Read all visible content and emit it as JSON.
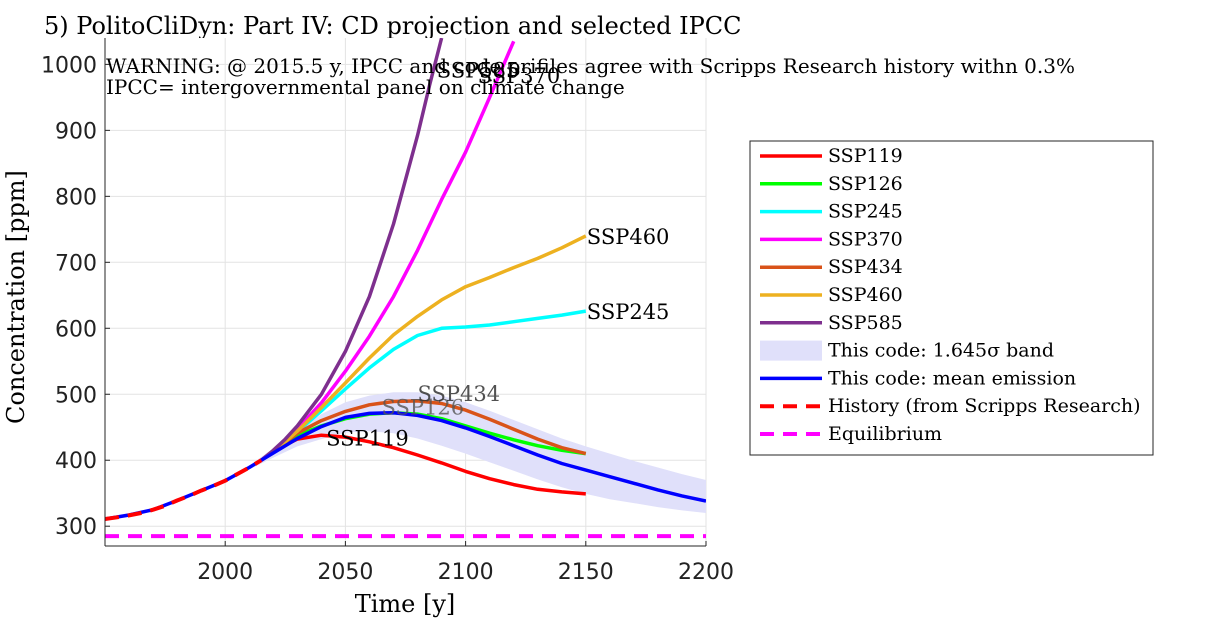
{
  "chart_data": {
    "type": "line",
    "title": "5) PolitoCliDyn: Part IV: CD projection and selected IPCC",
    "annotations": [
      "WARNING: @ 2015.5 y, IPCC and code prifiles agree with Scripps Research history withn 0.3%",
      "IPCC= intergovernmental panel on climate change"
    ],
    "xlabel": "Time [y]",
    "ylabel": "Concentration [ppm]",
    "xlim": [
      1950,
      2200
    ],
    "ylim": [
      270,
      1040
    ],
    "xticks": [
      2000,
      2050,
      2100,
      2150,
      2200
    ],
    "yticks": [
      300,
      400,
      500,
      600,
      700,
      800,
      900,
      1000
    ],
    "grid": true,
    "legend_position": "outside-right",
    "series": [
      {
        "name": "SSP119",
        "label": "SSP119",
        "color": "#ff0000",
        "style": "solid",
        "x": [
          2015,
          2020,
          2025,
          2030,
          2040,
          2050,
          2060,
          2070,
          2080,
          2090,
          2100,
          2110,
          2120,
          2130,
          2140,
          2150
        ],
        "y": [
          400,
          412,
          423,
          432,
          438,
          435,
          428,
          419,
          408,
          396,
          383,
          372,
          363,
          356,
          352,
          349
        ]
      },
      {
        "name": "SSP126",
        "label": "SSP126",
        "color": "#00ff00",
        "style": "solid",
        "x": [
          2015,
          2020,
          2025,
          2030,
          2040,
          2050,
          2060,
          2070,
          2080,
          2090,
          2100,
          2110,
          2120,
          2130,
          2140,
          2150
        ],
        "y": [
          400,
          412,
          425,
          437,
          452,
          463,
          470,
          472,
          470,
          463,
          452,
          441,
          431,
          422,
          415,
          410
        ]
      },
      {
        "name": "SSP245",
        "label": "SSP245",
        "color": "#00ffff",
        "style": "solid",
        "x": [
          2015,
          2020,
          2025,
          2030,
          2040,
          2050,
          2060,
          2070,
          2080,
          2090,
          2100,
          2110,
          2120,
          2130,
          2140,
          2150
        ],
        "y": [
          400,
          413,
          428,
          443,
          475,
          508,
          540,
          568,
          589,
          600,
          602,
          605,
          610,
          615,
          620,
          626
        ]
      },
      {
        "name": "SSP370",
        "label": "SSP370",
        "color": "#ff00ff",
        "style": "solid",
        "x": [
          2015,
          2020,
          2025,
          2030,
          2040,
          2050,
          2060,
          2070,
          2080,
          2090,
          2100,
          2110,
          2120
        ],
        "y": [
          400,
          414,
          430,
          447,
          487,
          535,
          588,
          648,
          718,
          795,
          867,
          950,
          1035
        ]
      },
      {
        "name": "SSP434",
        "label": "SSP434",
        "color": "#d95319",
        "style": "solid",
        "x": [
          2015,
          2020,
          2025,
          2030,
          2040,
          2050,
          2060,
          2070,
          2080,
          2090,
          2100,
          2110,
          2120,
          2130,
          2140,
          2150
        ],
        "y": [
          400,
          413,
          427,
          441,
          460,
          474,
          484,
          489,
          490,
          486,
          476,
          462,
          447,
          432,
          419,
          410
        ]
      },
      {
        "name": "SSP460",
        "label": "SSP460",
        "color": "#edb120",
        "style": "solid",
        "x": [
          2015,
          2020,
          2025,
          2030,
          2040,
          2050,
          2060,
          2070,
          2080,
          2090,
          2100,
          2110,
          2120,
          2130,
          2140,
          2150
        ],
        "y": [
          400,
          413,
          428,
          444,
          480,
          517,
          555,
          590,
          618,
          643,
          663,
          677,
          692,
          706,
          722,
          740
        ]
      },
      {
        "name": "SSP585",
        "label": "SSP585",
        "color": "#7e2f8e",
        "style": "solid",
        "x": [
          2015,
          2020,
          2025,
          2030,
          2040,
          2050,
          2060,
          2070,
          2080,
          2085,
          2090
        ],
        "y": [
          400,
          415,
          432,
          452,
          500,
          565,
          648,
          758,
          892,
          968,
          1040
        ]
      },
      {
        "name": "This code: mean emission",
        "color": "#0000ff",
        "style": "solid",
        "x": [
          1950,
          1960,
          1970,
          1980,
          1990,
          2000,
          2010,
          2020,
          2030,
          2040,
          2050,
          2060,
          2070,
          2080,
          2090,
          2100,
          2110,
          2120,
          2130,
          2140,
          2150,
          2160,
          2170,
          2180,
          2190,
          2200
        ],
        "y": [
          311,
          317,
          325,
          339,
          354,
          369,
          389,
          411,
          433,
          451,
          465,
          471,
          472,
          468,
          460,
          449,
          436,
          422,
          408,
          395,
          385,
          375,
          365,
          355,
          346,
          338
        ]
      },
      {
        "name": "History (from Scripps Research)",
        "color": "#ff0000",
        "style": "dashed",
        "x": [
          1950,
          1958,
          1965,
          1970,
          1975,
          1980,
          1985,
          1990,
          1995,
          2000,
          2005,
          2010,
          2015
        ],
        "y": [
          311,
          315,
          320,
          325,
          331,
          339,
          346,
          354,
          361,
          369,
          379,
          389,
          400
        ]
      },
      {
        "name": "Equilibrium",
        "color": "#ff00ff",
        "style": "dashed",
        "x": [
          1950,
          2200
        ],
        "y": [
          285,
          285
        ]
      }
    ],
    "band": {
      "name": "This code: 1.645σ band",
      "color": "#e0e0fa",
      "x": [
        2000,
        2010,
        2020,
        2030,
        2040,
        2050,
        2060,
        2070,
        2080,
        2090,
        2100,
        2110,
        2120,
        2130,
        2140,
        2150,
        2160,
        2170,
        2180,
        2190,
        2200
      ],
      "upper": [
        371,
        392,
        418,
        445,
        470,
        488,
        498,
        503,
        503,
        498,
        488,
        475,
        461,
        447,
        433,
        421,
        410,
        399,
        389,
        379,
        370
      ],
      "lower": [
        367,
        386,
        404,
        421,
        432,
        442,
        444,
        441,
        433,
        422,
        410,
        397,
        384,
        371,
        359,
        349,
        341,
        335,
        329,
        324,
        320
      ]
    },
    "legend": [
      {
        "label": "SSP119",
        "color": "#ff0000",
        "kind": "line"
      },
      {
        "label": "SSP126",
        "color": "#00ff00",
        "kind": "line"
      },
      {
        "label": "SSP245",
        "color": "#00ffff",
        "kind": "line"
      },
      {
        "label": "SSP370",
        "color": "#ff00ff",
        "kind": "line"
      },
      {
        "label": "SSP434",
        "color": "#d95319",
        "kind": "line"
      },
      {
        "label": "SSP460",
        "color": "#edb120",
        "kind": "line"
      },
      {
        "label": "SSP585",
        "color": "#7e2f8e",
        "kind": "line"
      },
      {
        "label": "This code: 1.645σ band",
        "color": "#e0e0fa",
        "kind": "band"
      },
      {
        "label": "This code: mean emission",
        "color": "#0000ff",
        "kind": "line"
      },
      {
        "label": "History (from Scripps Research)",
        "color": "#ff0000",
        "kind": "dashed"
      },
      {
        "label": "Equilibrium",
        "color": "#ff00ff",
        "kind": "dashed"
      }
    ]
  }
}
